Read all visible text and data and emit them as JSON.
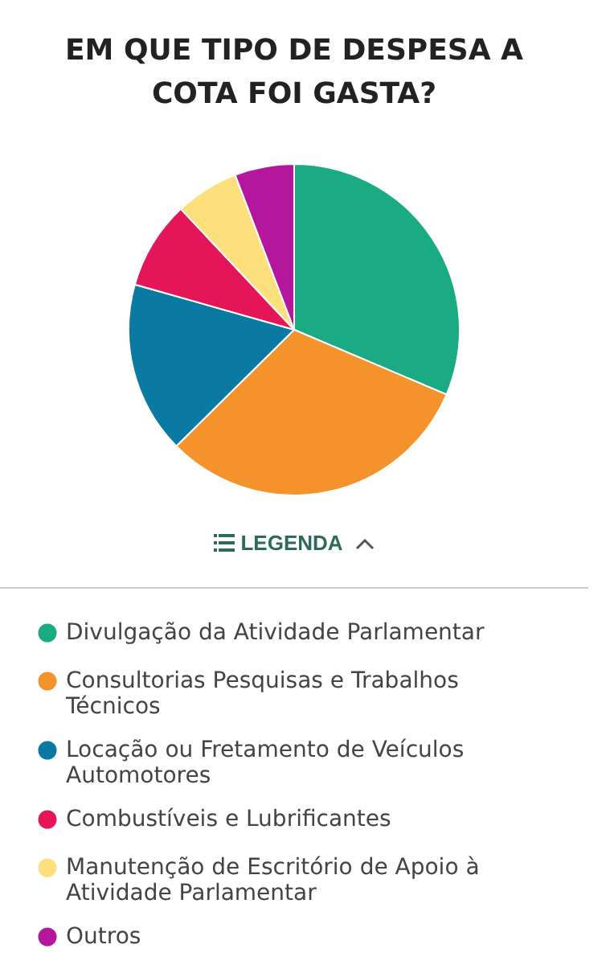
{
  "chart_data": {
    "type": "pie",
    "title": "EM QUE TIPO DE DESPESA A COTA FOI GASTA?",
    "categories": [
      "Divulgação da Atividade Parlamentar",
      "Consultorias Pesquisas e Trabalhos Técnicos",
      "Locação ou Fretamento de Veículos Automotores",
      "Combustíveis e Lubrificantes",
      "Manutenção de Escritório de Apoio à Atividade Parlamentar",
      "Outros"
    ],
    "values": [
      31.4,
      31.2,
      16.8,
      8.6,
      6.2,
      5.8
    ],
    "colors": [
      "#1aab84",
      "#f4922b",
      "#0b7aa3",
      "#e5155a",
      "#fde07b",
      "#b4179e"
    ],
    "legend": "bottom",
    "annotations": [
      "LEGENDA"
    ]
  }
}
